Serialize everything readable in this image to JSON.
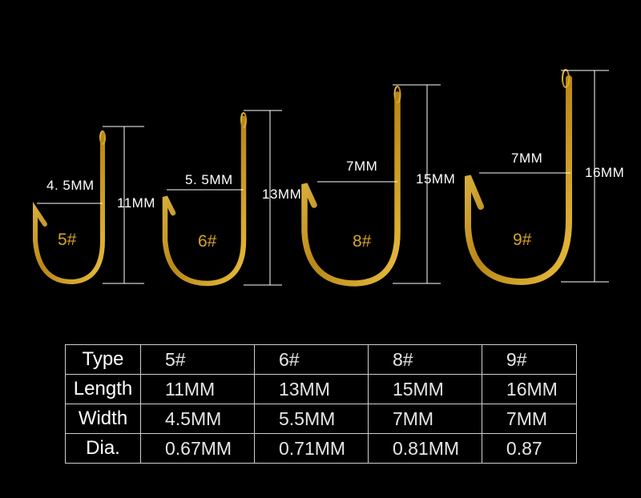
{
  "hooks": [
    {
      "size_label": "5#",
      "width_label": "4. 5MM",
      "length_label": "11MM"
    },
    {
      "size_label": "6#",
      "width_label": "5. 5MM",
      "length_label": "13MM"
    },
    {
      "size_label": "8#",
      "width_label": "7MM",
      "length_label": "15MM"
    },
    {
      "size_label": "9#",
      "width_label": "7MM",
      "length_label": "16MM"
    }
  ],
  "table": {
    "rows": [
      {
        "header": "Type",
        "cells": [
          "5#",
          "6#",
          "8#",
          "9#"
        ]
      },
      {
        "header": "Length",
        "cells": [
          "11MM",
          "13MM",
          "15MM",
          "16MM"
        ]
      },
      {
        "header": "Width",
        "cells": [
          "4.5MM",
          "5.5MM",
          "7MM",
          "7MM"
        ]
      },
      {
        "header": "Dia.",
        "cells": [
          "0.67MM",
          "0.71MM",
          "0.81MM",
          "0.87"
        ]
      }
    ]
  },
  "colors": {
    "background": "#000000",
    "hook_gold": "#c9961e",
    "line": "#ffffff"
  }
}
